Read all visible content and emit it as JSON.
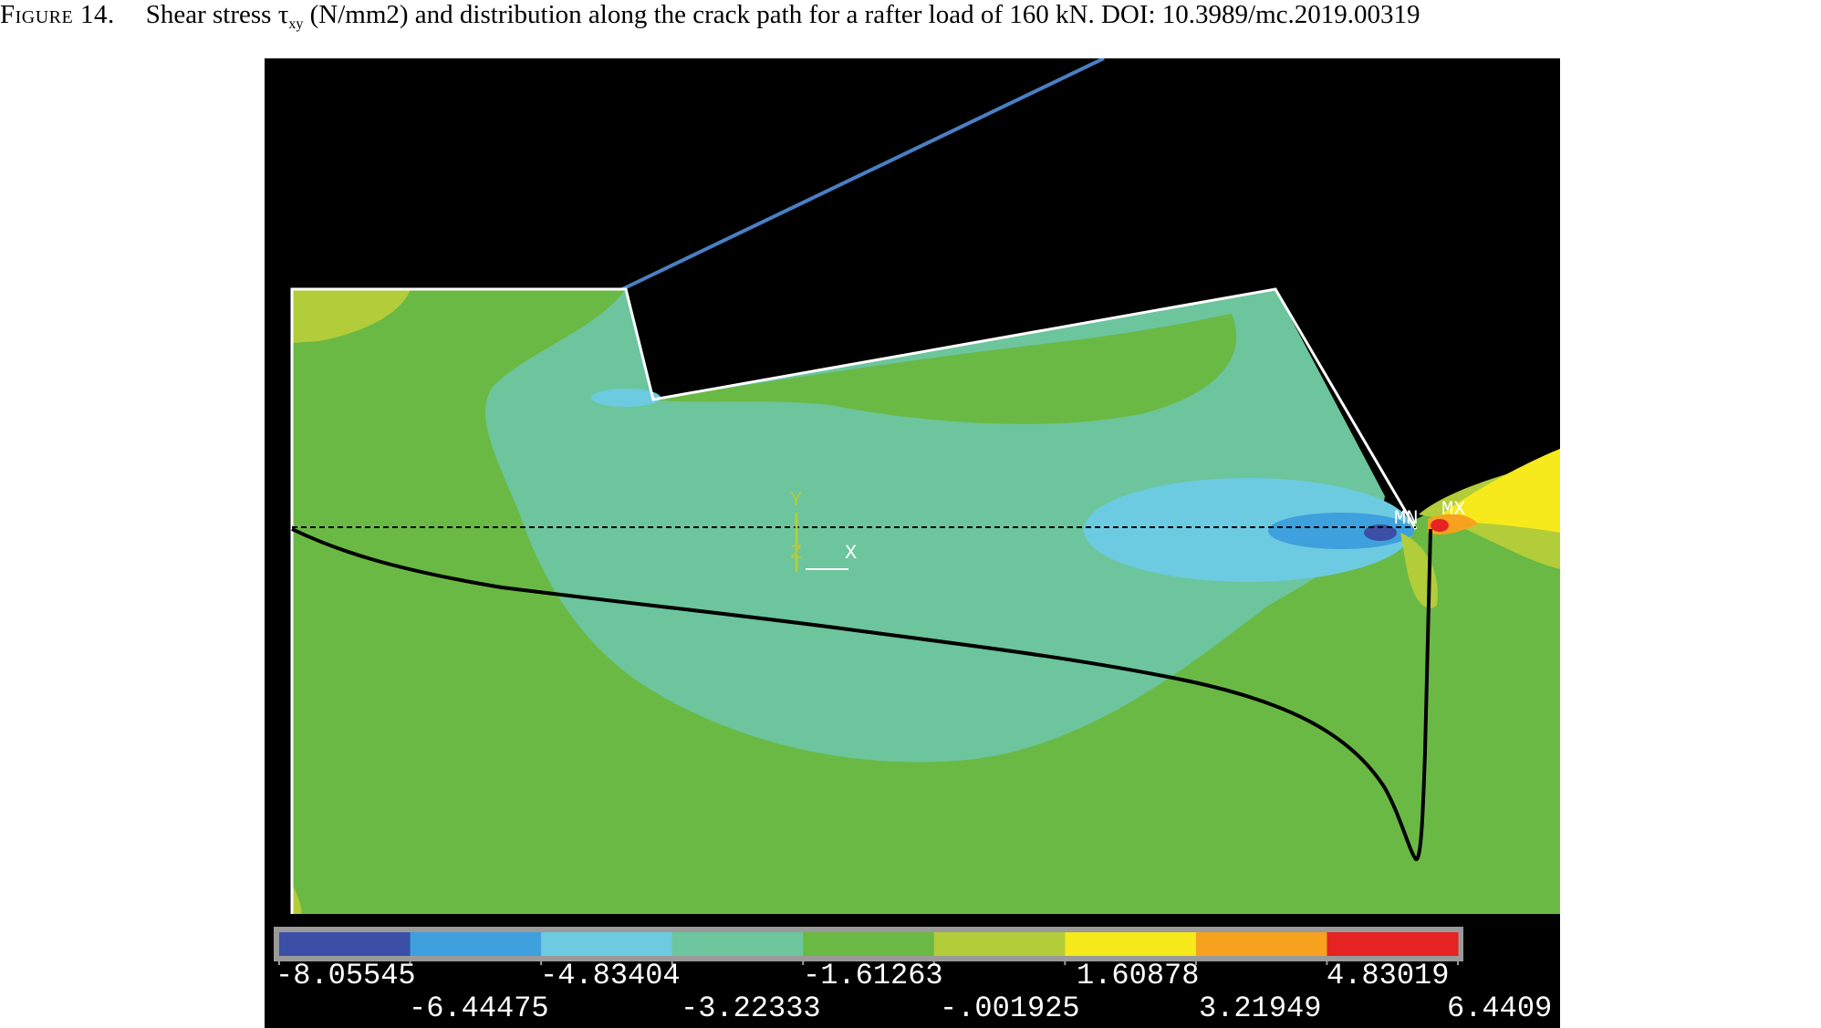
{
  "caption": {
    "figure_label": "Figure 14.",
    "text_before": "Shear stress τ",
    "subscript": "xy",
    "text_after": " (N/mm2) and distribution along the crack path for a rafter load of 160 kN. DOI: 10.3989/mc.2019.00319"
  },
  "contour": {
    "background": "#000000",
    "band_colors": [
      "#3a4fa5",
      "#3ea0dc",
      "#6ccbe0",
      "#6cc59c",
      "#6ab944",
      "#b3cc3a",
      "#f6e91c",
      "#f6a21e",
      "#e52322"
    ],
    "triad": {
      "y": "Y",
      "z": "Z",
      "x": "X"
    },
    "markers": {
      "min": "MN",
      "max": "MX"
    }
  },
  "legend": {
    "top_row": [
      "-8.05545",
      "-4.83404",
      "-1.61263",
      "1.60878",
      "4.83019"
    ],
    "bottom_row": [
      "-6.44475",
      "-3.22333",
      "-.001925",
      "3.21949",
      "6.4409"
    ]
  }
}
